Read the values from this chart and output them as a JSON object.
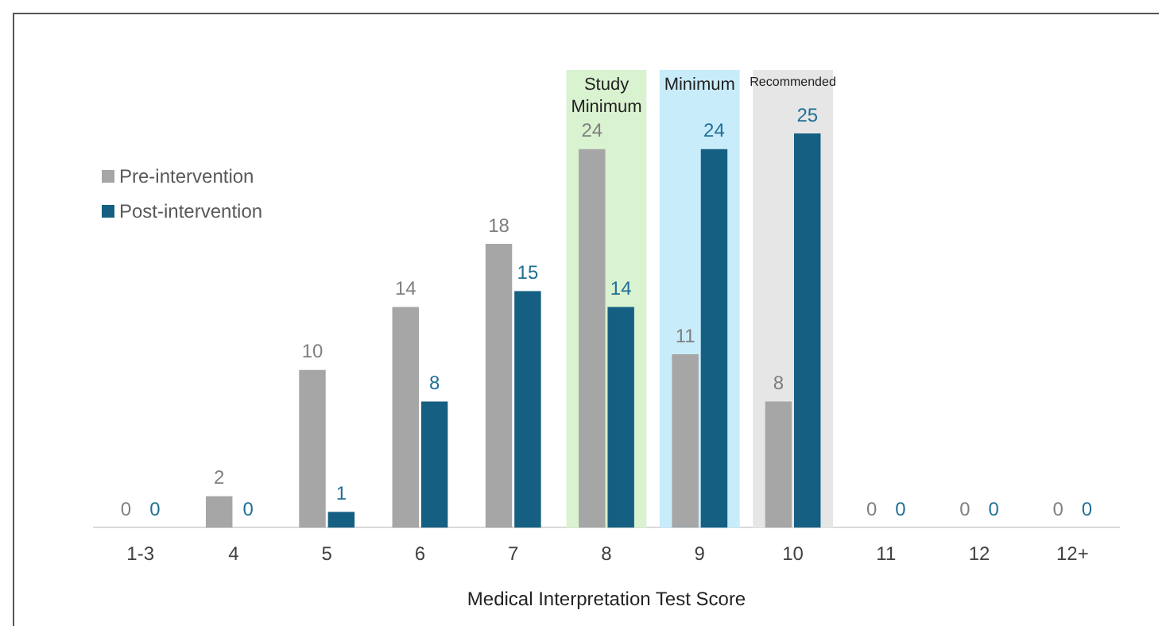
{
  "chart_data": {
    "type": "bar",
    "xlabel": "Medical Interpretation Test Score",
    "categories": [
      "1-3",
      "4",
      "5",
      "6",
      "7",
      "8",
      "9",
      "10",
      "11",
      "12",
      "12+"
    ],
    "series": [
      {
        "name": "Pre-intervention",
        "color": "#a6a6a6",
        "values": [
          0,
          2,
          10,
          14,
          18,
          24,
          11,
          8,
          0,
          0,
          0
        ]
      },
      {
        "name": "Post-intervention",
        "color": "#155f82",
        "values": [
          0,
          0,
          1,
          8,
          15,
          14,
          24,
          25,
          0,
          0,
          0
        ]
      }
    ],
    "bands": [
      {
        "axis": "x",
        "from": "8",
        "to": "8",
        "label": "Study Minimum",
        "color": "#d9f2d0"
      },
      {
        "axis": "x",
        "from": "9",
        "to": "9",
        "label": "Minimum",
        "color": "#c9ecfb"
      },
      {
        "axis": "x",
        "from": "10",
        "to": "10",
        "label": "Recommended",
        "color": "#e6e6e6"
      }
    ],
    "data_labels": true,
    "legend": "top left",
    "grid": false
  }
}
